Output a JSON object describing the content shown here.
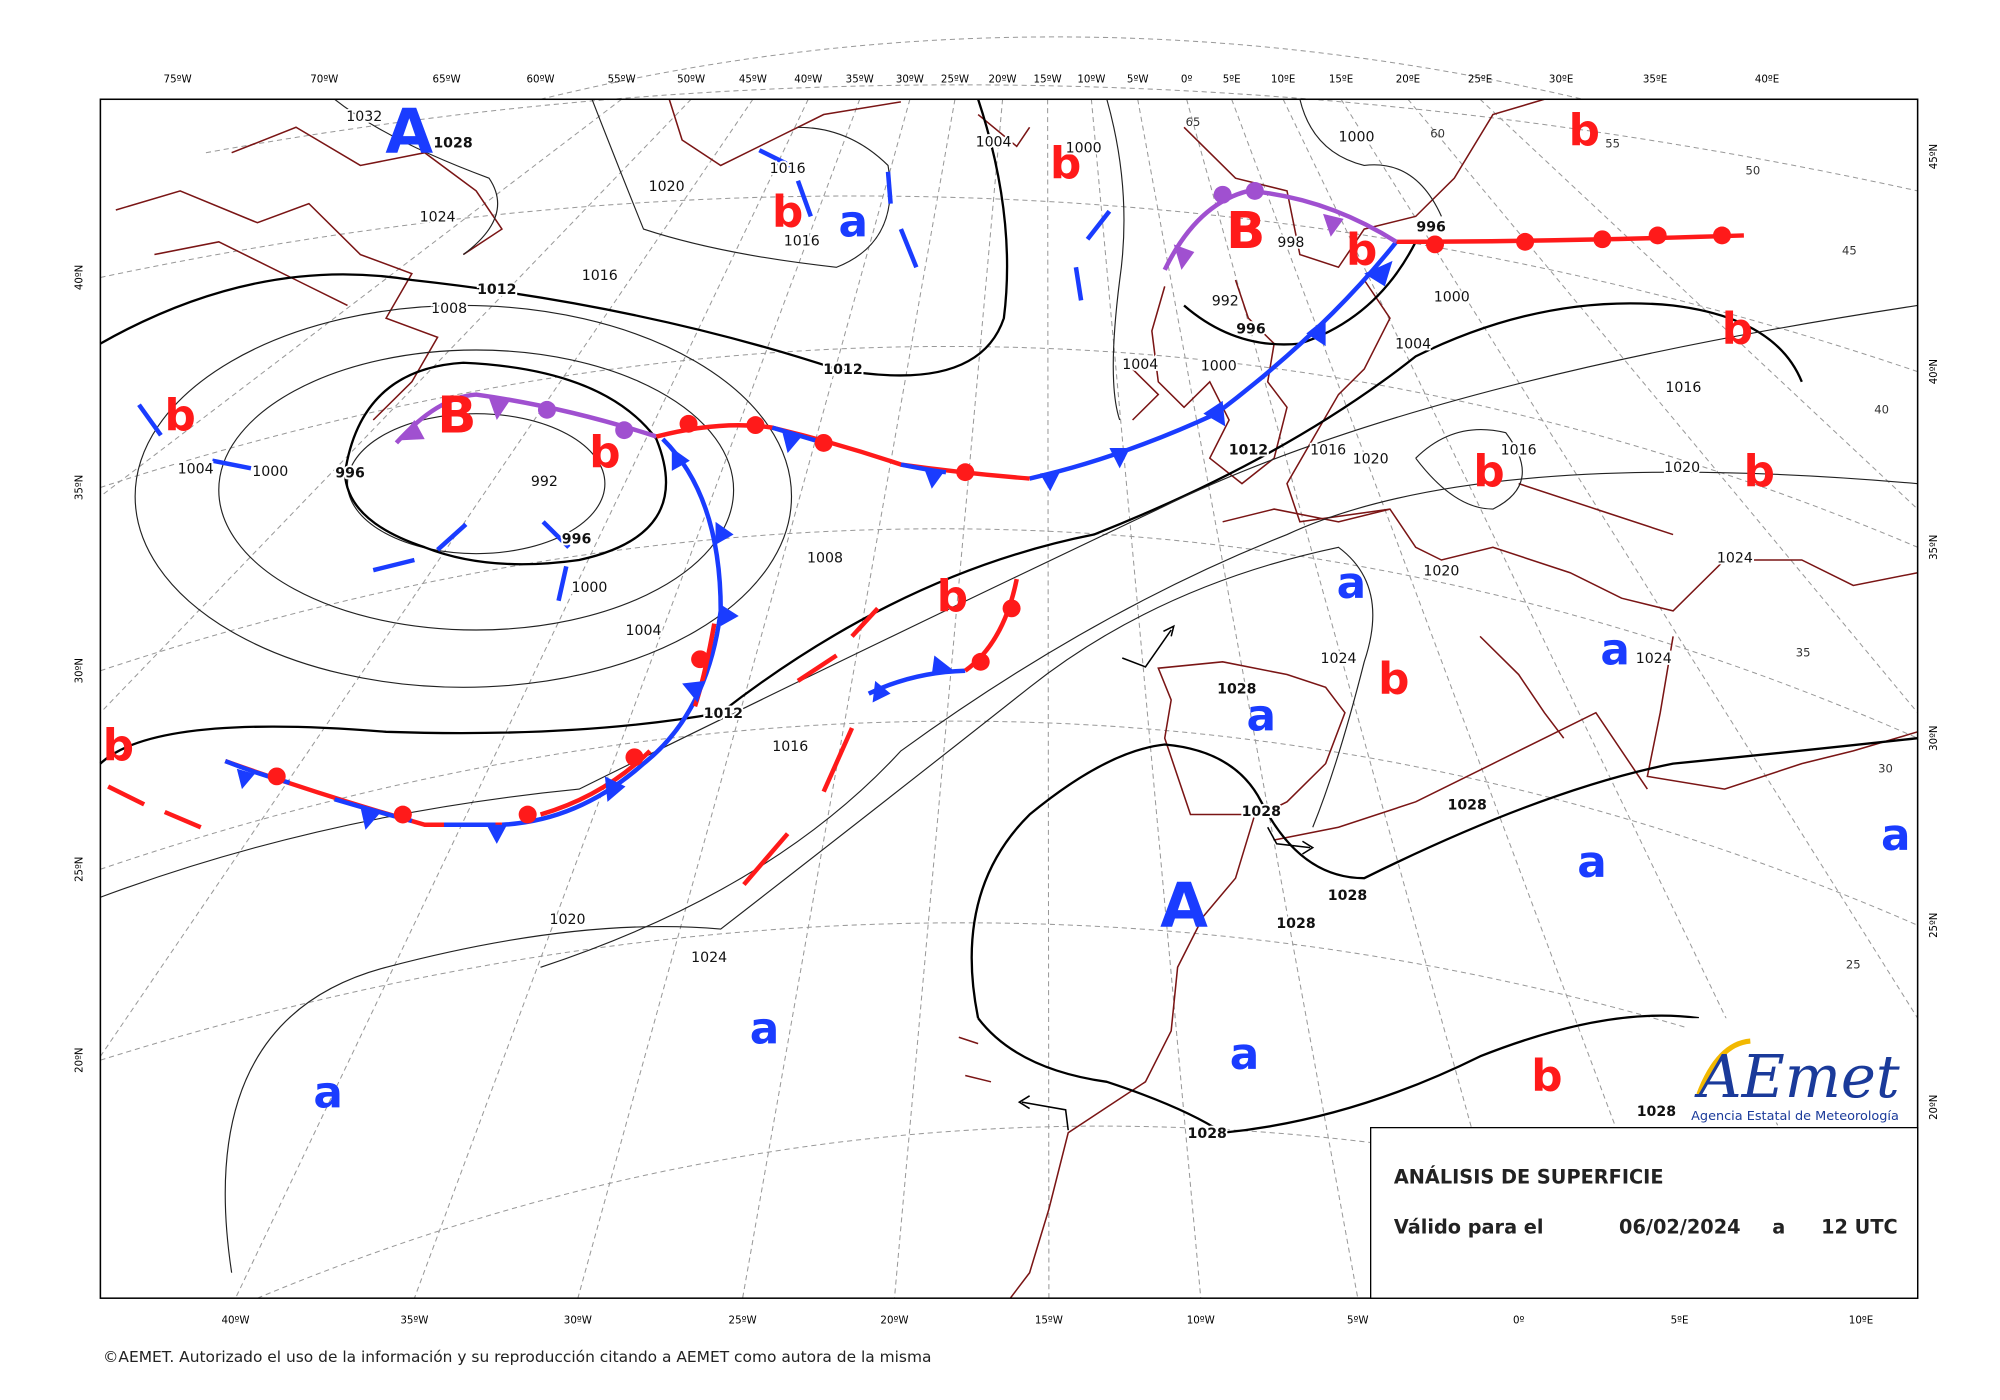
{
  "map": {
    "lon_labels_top": [
      "75ºW",
      "70ºW",
      "65ºW",
      "60ºW",
      "55ºW",
      "50ºW",
      "45ºW",
      "40ºW",
      "35ºW",
      "30ºW",
      "25ºW",
      "20ºW",
      "15ºW",
      "10ºW",
      "5ºW",
      "0º",
      "5ºE",
      "10ºE",
      "15ºE",
      "20ºE",
      "25ºE",
      "30ºE",
      "35ºE",
      "40ºE"
    ],
    "lon_labels_bottom": [
      "40ºW",
      "35ºW",
      "30ºW",
      "25ºW",
      "20ºW",
      "15ºW",
      "10ºW",
      "5ºW",
      "0º",
      "5ºE",
      "10ºE"
    ],
    "lat_labels_left": [
      "40ºN",
      "35ºN",
      "30ºN",
      "25ºN",
      "20ºN"
    ],
    "lat_labels_right": [
      "45ºN",
      "40ºN",
      "35ºN",
      "30ºN",
      "25ºN",
      "20ºN"
    ],
    "lat_grid_labels": [
      65,
      60,
      55,
      50,
      45,
      40,
      35,
      30,
      25
    ],
    "pressure_centers": [
      "A",
      "b",
      "a",
      "b",
      "B",
      "b",
      "b",
      "b",
      "b",
      "B",
      "b",
      "b",
      "b",
      "b",
      "a",
      "a",
      "b",
      "a",
      "b",
      "a",
      "a",
      "A",
      "a",
      "a",
      "a",
      "b"
    ],
    "isobar_labels": [
      1032,
      1028,
      1024,
      1020,
      1016,
      1016,
      1016,
      1012,
      1008,
      1012,
      1004,
      1000,
      1000,
      998,
      992,
      996,
      996,
      1000,
      1004,
      1016,
      1004,
      1000,
      1012,
      1016,
      1020,
      1016,
      1020,
      1024,
      1020,
      1024,
      1024,
      1028,
      1028,
      1028,
      1028,
      1028,
      1028,
      1028,
      1004,
      1000,
      996,
      992,
      996,
      1000,
      1004,
      1008,
      1012,
      1016,
      1020,
      1024
    ]
  },
  "info_box": {
    "title": "ANÁLISIS DE SUPERFICIE",
    "valid_label": "Válido para el",
    "date": "06/02/2024",
    "connector": "a",
    "time": "12 UTC"
  },
  "logo": {
    "name": "AEmet",
    "subtitle": "Agencia Estatal de Meteorología"
  },
  "footer": "©AEMET. Autorizado el uso de la información y su reproducción citando a AEMET como autora de la misma"
}
